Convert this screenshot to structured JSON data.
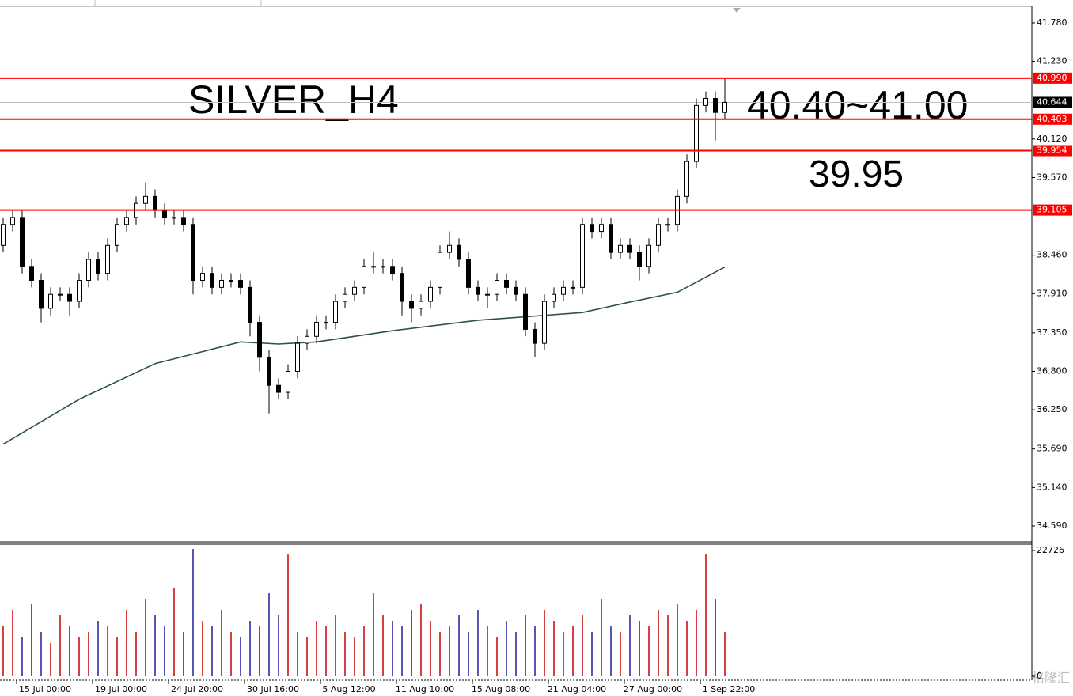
{
  "chart_data": {
    "type": "candlestick",
    "title": "SILVER_H4",
    "annotations": [
      "40.40~41.00",
      "39.95"
    ],
    "annotation_colors": [
      "#10107a",
      "#ff5014"
    ],
    "title_color": "#ff0000",
    "candle_color": "#000000",
    "open": [
      38.6,
      38.9,
      39.0,
      38.3,
      38.1,
      37.7,
      37.9,
      37.9,
      37.8,
      38.1,
      38.4,
      38.2,
      38.6,
      38.9,
      39.0,
      39.2,
      39.3,
      39.1,
      39.0,
      39.0,
      38.9,
      38.1,
      38.2,
      38.0,
      38.1,
      38.1,
      38.0,
      37.5,
      37.0,
      36.6,
      36.5,
      36.8,
      37.2,
      37.3,
      37.5,
      37.5,
      37.8,
      37.9,
      38.0,
      38.3,
      38.3,
      38.3,
      38.2,
      37.8,
      37.7,
      37.8,
      38.0,
      38.5,
      38.6,
      38.4,
      38.0,
      37.9,
      37.9,
      38.1,
      38.0,
      37.9,
      37.4,
      37.2,
      37.8,
      37.9,
      38.0,
      38.0,
      38.9,
      38.8,
      38.9,
      38.5,
      38.6,
      38.5,
      38.3,
      38.6,
      38.9,
      38.9,
      39.3,
      39.8,
      40.6,
      40.7,
      40.5
    ],
    "high": [
      39.0,
      39.1,
      39.1,
      38.4,
      38.2,
      38.0,
      38.0,
      38.0,
      38.2,
      38.5,
      38.5,
      38.7,
      39.0,
      39.1,
      39.3,
      39.5,
      39.4,
      39.2,
      39.1,
      39.1,
      39.0,
      38.3,
      38.3,
      38.2,
      38.2,
      38.2,
      38.1,
      37.6,
      37.1,
      36.7,
      36.9,
      37.3,
      37.4,
      37.6,
      37.6,
      37.9,
      38.0,
      38.1,
      38.4,
      38.5,
      38.4,
      38.4,
      38.3,
      37.9,
      37.9,
      38.1,
      38.6,
      38.8,
      38.7,
      38.5,
      38.1,
      38.0,
      38.2,
      38.2,
      38.1,
      38.0,
      37.5,
      37.9,
      38.0,
      38.1,
      38.1,
      39.0,
      39.0,
      39.0,
      39.0,
      38.7,
      38.7,
      38.6,
      38.7,
      39.0,
      39.0,
      39.4,
      39.9,
      40.7,
      40.8,
      40.8,
      41.0
    ],
    "low": [
      38.5,
      38.8,
      38.2,
      38.0,
      37.5,
      37.6,
      37.8,
      37.6,
      37.7,
      38.0,
      38.1,
      38.1,
      38.5,
      38.8,
      38.9,
      39.1,
      39.0,
      38.9,
      38.9,
      38.8,
      37.9,
      38.0,
      37.9,
      37.9,
      38.0,
      37.9,
      37.3,
      36.8,
      36.2,
      36.4,
      36.4,
      36.7,
      37.1,
      37.2,
      37.4,
      37.4,
      37.7,
      37.8,
      37.9,
      38.2,
      38.2,
      38.1,
      37.6,
      37.5,
      37.6,
      37.7,
      37.9,
      38.4,
      38.3,
      37.9,
      37.8,
      37.7,
      37.8,
      37.9,
      37.8,
      37.3,
      37.0,
      37.1,
      37.7,
      37.8,
      37.9,
      37.9,
      38.7,
      38.7,
      38.4,
      38.4,
      38.4,
      38.1,
      38.2,
      38.5,
      38.8,
      38.8,
      39.2,
      39.7,
      40.5,
      40.1,
      40.4
    ],
    "close": [
      38.9,
      39.0,
      38.3,
      38.1,
      37.7,
      37.9,
      37.9,
      37.8,
      38.1,
      38.4,
      38.2,
      38.6,
      38.9,
      39.0,
      39.2,
      39.3,
      39.1,
      39.0,
      39.0,
      38.9,
      38.1,
      38.2,
      38.0,
      38.1,
      38.1,
      38.0,
      37.5,
      37.0,
      36.6,
      36.5,
      36.8,
      37.2,
      37.3,
      37.5,
      37.5,
      37.8,
      37.9,
      38.0,
      38.3,
      38.3,
      38.3,
      38.2,
      37.8,
      37.7,
      37.8,
      38.0,
      38.5,
      38.6,
      38.4,
      38.0,
      37.9,
      37.9,
      38.1,
      38.0,
      37.9,
      37.4,
      37.2,
      37.8,
      37.9,
      38.0,
      38.0,
      38.9,
      38.8,
      38.9,
      38.5,
      38.6,
      38.5,
      38.3,
      38.6,
      38.9,
      38.9,
      39.3,
      39.8,
      40.6,
      40.7,
      40.5,
      40.644
    ],
    "ma": {
      "color": "#2f4f4f",
      "x": [
        0,
        8,
        16,
        25,
        29,
        33,
        41,
        50,
        56,
        61,
        66,
        71,
        76
      ],
      "values": [
        35.76,
        36.4,
        36.91,
        37.22,
        37.19,
        37.22,
        37.38,
        37.53,
        37.59,
        37.64,
        37.79,
        37.93,
        38.29
      ]
    },
    "ylim": [
      34.364,
      42.017
    ],
    "yticks": [
      {
        "value": 41.78,
        "label": "41.780"
      },
      {
        "value": 41.23,
        "label": "41.230"
      },
      {
        "value": 40.12,
        "label": "40.120"
      },
      {
        "value": 39.57,
        "label": "39.570"
      },
      {
        "value": 38.46,
        "label": "38.460"
      },
      {
        "value": 37.91,
        "label": "37.910"
      },
      {
        "value": 37.35,
        "label": "37.350"
      },
      {
        "value": 36.8,
        "label": "36.800"
      },
      {
        "value": 36.25,
        "label": "36.250"
      },
      {
        "value": 35.69,
        "label": "35.690"
      },
      {
        "value": 35.14,
        "label": "35.140"
      },
      {
        "value": 34.59,
        "label": "34.590"
      }
    ],
    "levels": [
      {
        "value": 40.99,
        "label": "40.990"
      },
      {
        "value": 40.403,
        "label": "40.403"
      },
      {
        "value": 39.954,
        "label": "39.954"
      },
      {
        "value": 39.105,
        "label": "39.105"
      }
    ],
    "level_color": "#ff0000",
    "current_price": {
      "value": 40.644,
      "label": "40.644"
    },
    "xticks": [
      "15 Jul 00:00",
      "19 Jul 00:00",
      "24 Jul 20:00",
      "30 Jul 16:00",
      "5 Aug 12:00",
      "11 Aug 10:00",
      "15 Aug 08:00",
      "21 Aug 04:00",
      "27 Aug 00:00",
      "1 Sep 22:00"
    ],
    "volume": [
      9000,
      12000,
      7000,
      13000,
      8000,
      6000,
      11000,
      9000,
      7000,
      8000,
      10000,
      9000,
      7000,
      12000,
      8000,
      14000,
      11000,
      9000,
      16000,
      8000,
      23000,
      10000,
      9000,
      12000,
      8000,
      7000,
      10000,
      9000,
      15000,
      11000,
      22000,
      8000,
      7000,
      10000,
      9000,
      11000,
      8000,
      7000,
      9000,
      15000,
      11000,
      10000,
      9000,
      12000,
      13000,
      10000,
      8000,
      9000,
      11000,
      8000,
      12000,
      9000,
      7000,
      10000,
      8000,
      11000,
      9000,
      12000,
      10000,
      8000,
      9000,
      11000,
      8000,
      14000,
      9000,
      8000,
      11000,
      10000,
      9000,
      12000,
      11000,
      13000,
      10000,
      12000,
      22000,
      14000,
      8000
    ],
    "volume_colors": [
      "#c80000",
      "#1c1c9c"
    ],
    "vlim": [
      0,
      23870
    ],
    "vticks": [
      22726,
      0
    ],
    "watermark": "格隆汇"
  }
}
